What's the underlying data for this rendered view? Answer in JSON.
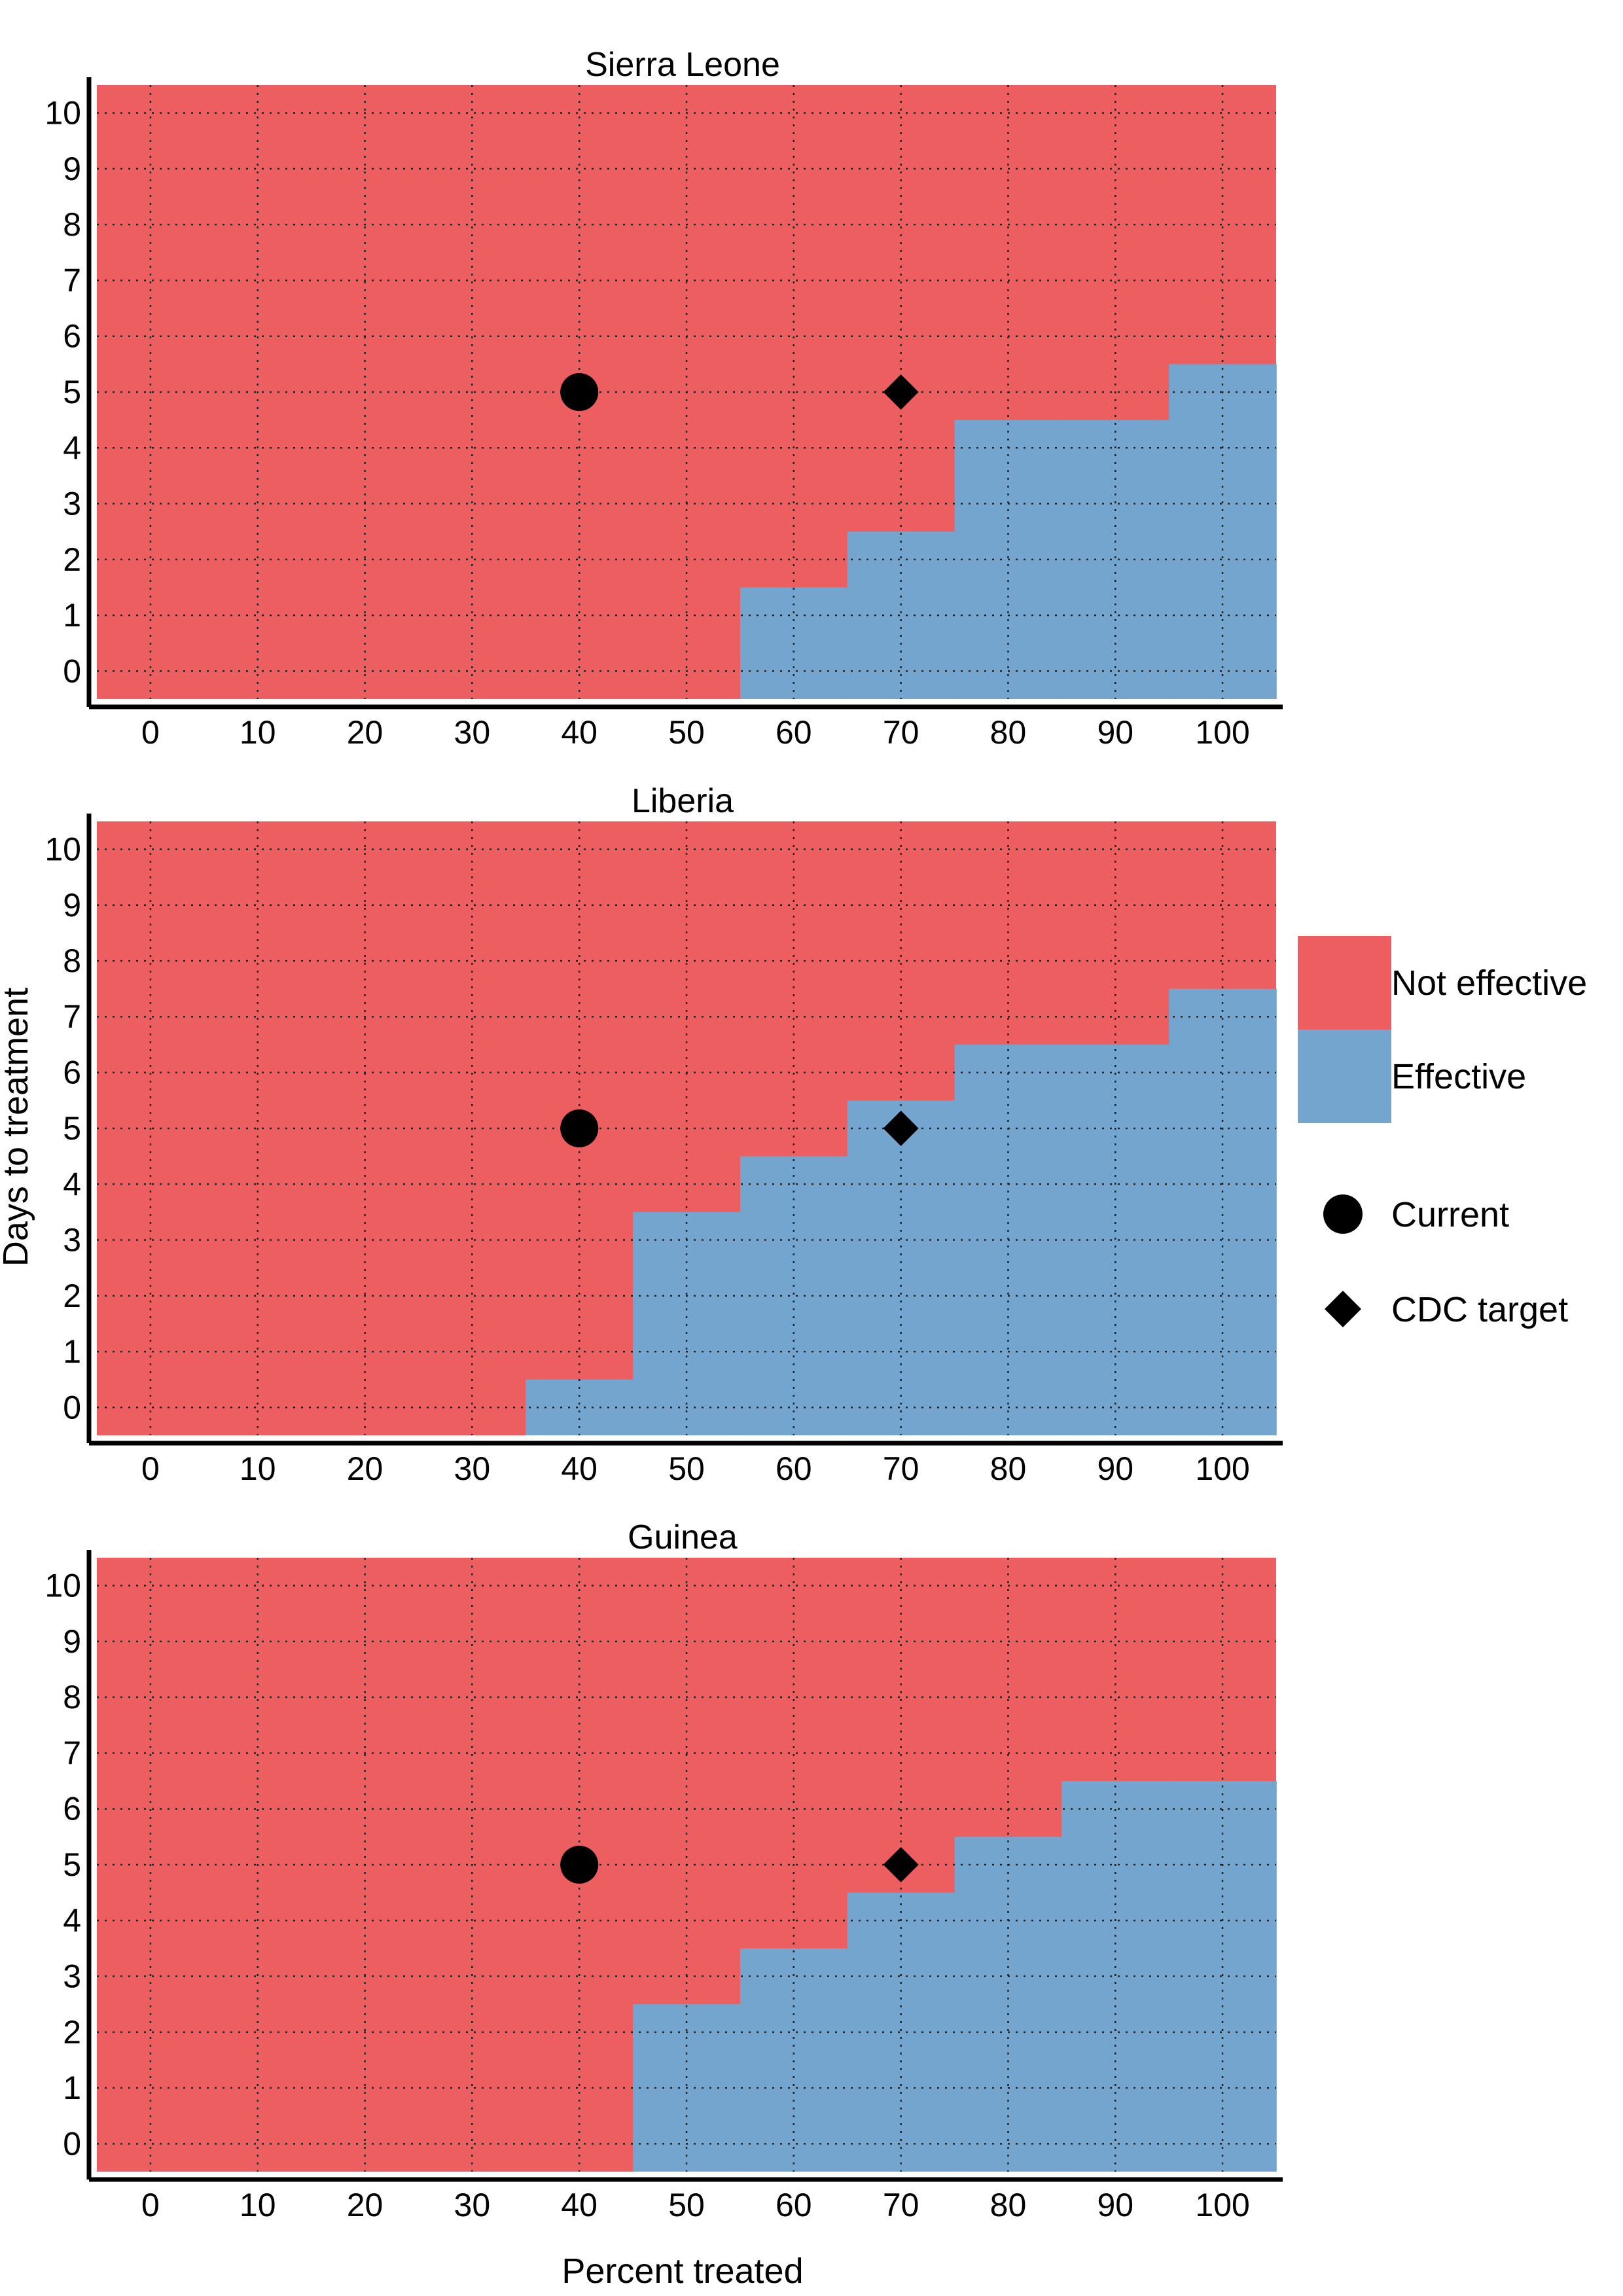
{
  "chart_data": {
    "type": "heatmap",
    "xlabel": "Percent treated",
    "ylabel": "Days to treatment",
    "x_ticks": [
      0,
      10,
      20,
      30,
      40,
      50,
      60,
      70,
      80,
      90,
      100
    ],
    "y_ticks": [
      0,
      1,
      2,
      3,
      4,
      5,
      6,
      7,
      8,
      9,
      10
    ],
    "xlim": [
      -5,
      105
    ],
    "ylim": [
      -0.5,
      10.5
    ],
    "grid": "dotted",
    "cell_categories": [
      "Not effective",
      "Effective"
    ],
    "colors": {
      "not_effective": "#EC5E5F",
      "effective": "#74A5CE",
      "marker": "#000000"
    },
    "legend": {
      "placement": "right",
      "fill_items": [
        {
          "label": "Not effective",
          "color": "#EC5E5F"
        },
        {
          "label": "Effective",
          "color": "#74A5CE"
        }
      ],
      "marker_items": [
        {
          "label": "Current",
          "shape": "circle"
        },
        {
          "label": "CDC target",
          "shape": "diamond"
        }
      ]
    },
    "panels": [
      {
        "title": "Sierra Leone",
        "effective_max_days": [
          -1,
          -1,
          -1,
          -1,
          -1,
          -1,
          1,
          2,
          4,
          4,
          5
        ],
        "current": {
          "x": 40,
          "y": 5
        },
        "cdc_target": {
          "x": 70,
          "y": 5
        }
      },
      {
        "title": "Liberia",
        "effective_max_days": [
          -1,
          -1,
          -1,
          -1,
          0,
          3,
          4,
          5,
          6,
          6,
          7
        ],
        "current": {
          "x": 40,
          "y": 5
        },
        "cdc_target": {
          "x": 70,
          "y": 5
        }
      },
      {
        "title": "Guinea",
        "effective_max_days": [
          -1,
          -1,
          -1,
          -1,
          -1,
          2,
          3,
          4,
          5,
          6,
          6
        ],
        "current": {
          "x": 40,
          "y": 5
        },
        "cdc_target": {
          "x": 70,
          "y": 5
        }
      }
    ]
  }
}
